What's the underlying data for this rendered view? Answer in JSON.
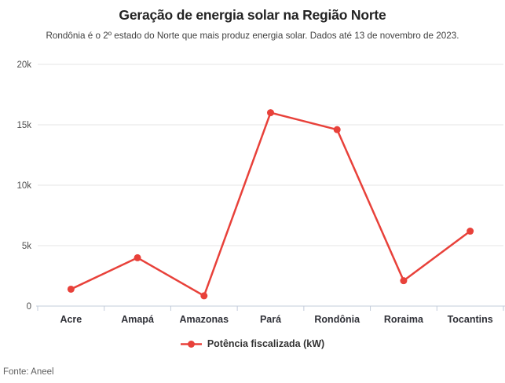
{
  "header": {
    "title": "Geração de energia solar na Região Norte",
    "subtitle": "Rondônia é o 2º estado do Norte que mais produz energia solar. Dados até 13 de novembro de 2023."
  },
  "chart_data": {
    "type": "line",
    "title": "Geração de energia solar na Região Norte",
    "subtitle": "Rondônia é o 2º estado do Norte que mais produz energia solar. Dados até 13 de novembro de 2023.",
    "categories": [
      "Acre",
      "Amapá",
      "Amazonas",
      "Pará",
      "Rondônia",
      "Roraima",
      "Tocantins"
    ],
    "series": [
      {
        "name": "Potência fiscalizada (kW)",
        "color": "#e8413a",
        "values": [
          1400,
          4000,
          850,
          16000,
          14600,
          2100,
          6200
        ]
      }
    ],
    "xlabel": "",
    "ylabel": "",
    "ylim": [
      0,
      20000
    ],
    "yticks": [
      {
        "value": 0,
        "label": "0"
      },
      {
        "value": 5000,
        "label": "5k"
      },
      {
        "value": 10000,
        "label": "10k"
      },
      {
        "value": 15000,
        "label": "15k"
      },
      {
        "value": 20000,
        "label": "20k"
      }
    ],
    "grid": true,
    "legend_position": "bottom"
  },
  "legend": {
    "label": "Potência fiscalizada (kW)"
  },
  "footer": {
    "source": "Fonte: Aneel"
  },
  "colors": {
    "line": "#e8413a",
    "grid": "#e4e4e4",
    "axis": "#c3ccdb",
    "title": "#232323",
    "subtitle": "#3f3f3f",
    "tick_label": "#4f4f4f",
    "category_label": "#2f3037",
    "source": "#606060",
    "background": "#ffffff"
  }
}
